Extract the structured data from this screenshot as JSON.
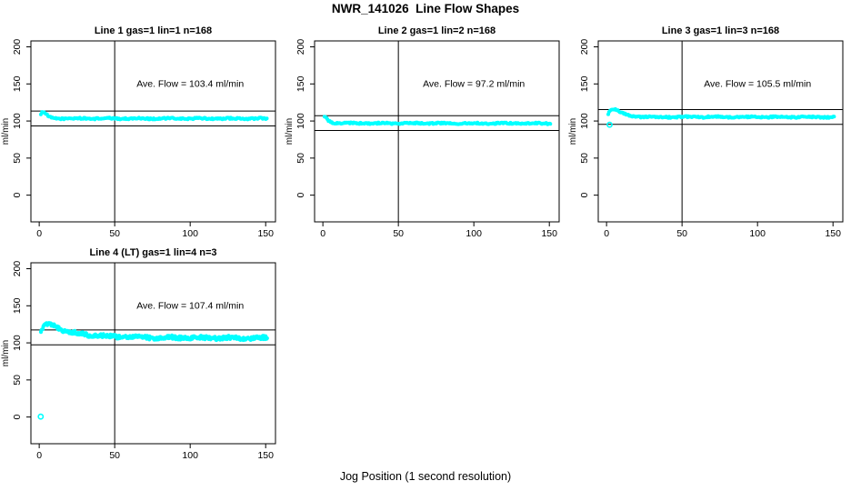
{
  "page_title": "NWR_141026  Line Flow Shapes",
  "xlabel": "Jog Position (1 second resolution)",
  "colors": {
    "points": "#00ffff",
    "axis": "#000000",
    "background": "#ffffff"
  },
  "chart_data": [
    {
      "type": "scatter",
      "title": "Line 1 gas=1 lin=1 n=168",
      "ylabel": "ml/min",
      "annotation": "Ave. Flow =  103.4  ml/min",
      "ave_flow_ml_min": 103.4,
      "n": 168,
      "hlines": [
        113.4,
        93.4
      ],
      "vline_x": 50,
      "xticks": [
        0,
        50,
        100,
        150
      ],
      "yticks": [
        0,
        50,
        100,
        150,
        200
      ],
      "xlim": [
        -5.5,
        156.5
      ],
      "ylim": [
        -36,
        208
      ],
      "annotation_xy": [
        100,
        150
      ],
      "profile": [
        [
          1,
          109.5
        ],
        [
          2,
          112.0
        ],
        [
          3,
          112.5
        ],
        [
          4,
          110.0
        ],
        [
          5,
          108.0
        ],
        [
          6,
          106.5
        ],
        [
          7,
          105.0
        ],
        [
          8,
          104.2
        ],
        [
          10,
          103.6
        ],
        [
          15,
          103.4
        ],
        [
          80,
          103.3
        ],
        [
          150,
          103.3
        ]
      ],
      "outliers": [],
      "band": {
        "x_start": 1,
        "x_end": 151,
        "step": 0.7,
        "jitter": 1.0,
        "radius": 2.0
      }
    },
    {
      "type": "scatter",
      "title": "Line 2 gas=1 lin=2 n=168",
      "ylabel": "ml/min",
      "annotation": "Ave. Flow =  97.2  ml/min",
      "ave_flow_ml_min": 97.2,
      "n": 168,
      "hlines": [
        107.2,
        87.2
      ],
      "vline_x": 50,
      "xticks": [
        0,
        50,
        100,
        150
      ],
      "yticks": [
        0,
        50,
        100,
        150,
        200
      ],
      "xlim": [
        -5.5,
        156.5
      ],
      "ylim": [
        -36,
        208
      ],
      "annotation_xy": [
        100,
        150
      ],
      "profile": [
        [
          1,
          106.5
        ],
        [
          2,
          106.0
        ],
        [
          3,
          102.5
        ],
        [
          4,
          100.0
        ],
        [
          5,
          98.8
        ],
        [
          6,
          98.0
        ],
        [
          8,
          97.3
        ],
        [
          12,
          97.0
        ],
        [
          80,
          96.9
        ],
        [
          150,
          96.8
        ]
      ],
      "outliers": [],
      "band": {
        "x_start": 1,
        "x_end": 151,
        "step": 0.7,
        "jitter": 1.0,
        "radius": 2.0
      }
    },
    {
      "type": "scatter",
      "title": "Line 3 gas=1 lin=3 n=168",
      "ylabel": "ml/min",
      "annotation": "Ave. Flow =  105.5  ml/min",
      "ave_flow_ml_min": 105.5,
      "n": 168,
      "hlines": [
        115.5,
        95.5
      ],
      "vline_x": 50,
      "xticks": [
        0,
        50,
        100,
        150
      ],
      "yticks": [
        0,
        50,
        100,
        150,
        200
      ],
      "xlim": [
        -5.5,
        156.5
      ],
      "ylim": [
        -36,
        208
      ],
      "annotation_xy": [
        100,
        150
      ],
      "profile": [
        [
          1,
          110.0
        ],
        [
          2,
          113.5
        ],
        [
          3,
          116.0
        ],
        [
          4,
          116.8
        ],
        [
          5,
          116.5
        ],
        [
          6,
          115.5
        ],
        [
          8,
          113.0
        ],
        [
          10,
          111.0
        ],
        [
          12,
          109.0
        ],
        [
          15,
          107.3
        ],
        [
          18,
          106.3
        ],
        [
          22,
          105.8
        ],
        [
          30,
          105.5
        ],
        [
          90,
          105.4
        ],
        [
          150,
          105.2
        ]
      ],
      "outliers": [
        [
          2,
          95
        ]
      ],
      "band": {
        "x_start": 1,
        "x_end": 151,
        "step": 0.7,
        "jitter": 1.0,
        "radius": 2.0
      }
    },
    {
      "type": "scatter",
      "title": "Line 4 (LT) gas=1 lin=4 n=3",
      "ylabel": "ml/min",
      "annotation": "Ave. Flow =  107.4  ml/min",
      "ave_flow_ml_min": 107.4,
      "n": 3,
      "hlines": [
        117.4,
        97.4
      ],
      "vline_x": 50,
      "xticks": [
        0,
        50,
        100,
        150
      ],
      "yticks": [
        0,
        50,
        100,
        150,
        200
      ],
      "xlim": [
        -5.5,
        156.5
      ],
      "ylim": [
        -36,
        208
      ],
      "annotation_xy": [
        100,
        150
      ],
      "profile": [
        [
          1,
          114.5
        ],
        [
          2,
          119.0
        ],
        [
          3,
          122.0
        ],
        [
          4,
          124.0
        ],
        [
          5,
          124.8
        ],
        [
          6,
          125.0
        ],
        [
          8,
          124.0
        ],
        [
          10,
          122.5
        ],
        [
          12,
          120.5
        ],
        [
          15,
          118.0
        ],
        [
          18,
          116.0
        ],
        [
          22,
          114.0
        ],
        [
          26,
          112.5
        ],
        [
          30,
          111.5
        ],
        [
          35,
          110.3
        ],
        [
          40,
          109.4
        ],
        [
          45,
          108.8
        ],
        [
          50,
          108.4
        ],
        [
          60,
          107.8
        ],
        [
          70,
          107.4
        ],
        [
          85,
          107.0
        ],
        [
          100,
          106.9
        ],
        [
          120,
          106.7
        ],
        [
          150,
          106.4
        ]
      ],
      "outliers": [
        [
          1,
          0.5
        ]
      ],
      "band": {
        "x_start": 1,
        "x_end": 151,
        "step": 0.42,
        "jitter": 2.4,
        "radius": 2.1
      }
    }
  ]
}
